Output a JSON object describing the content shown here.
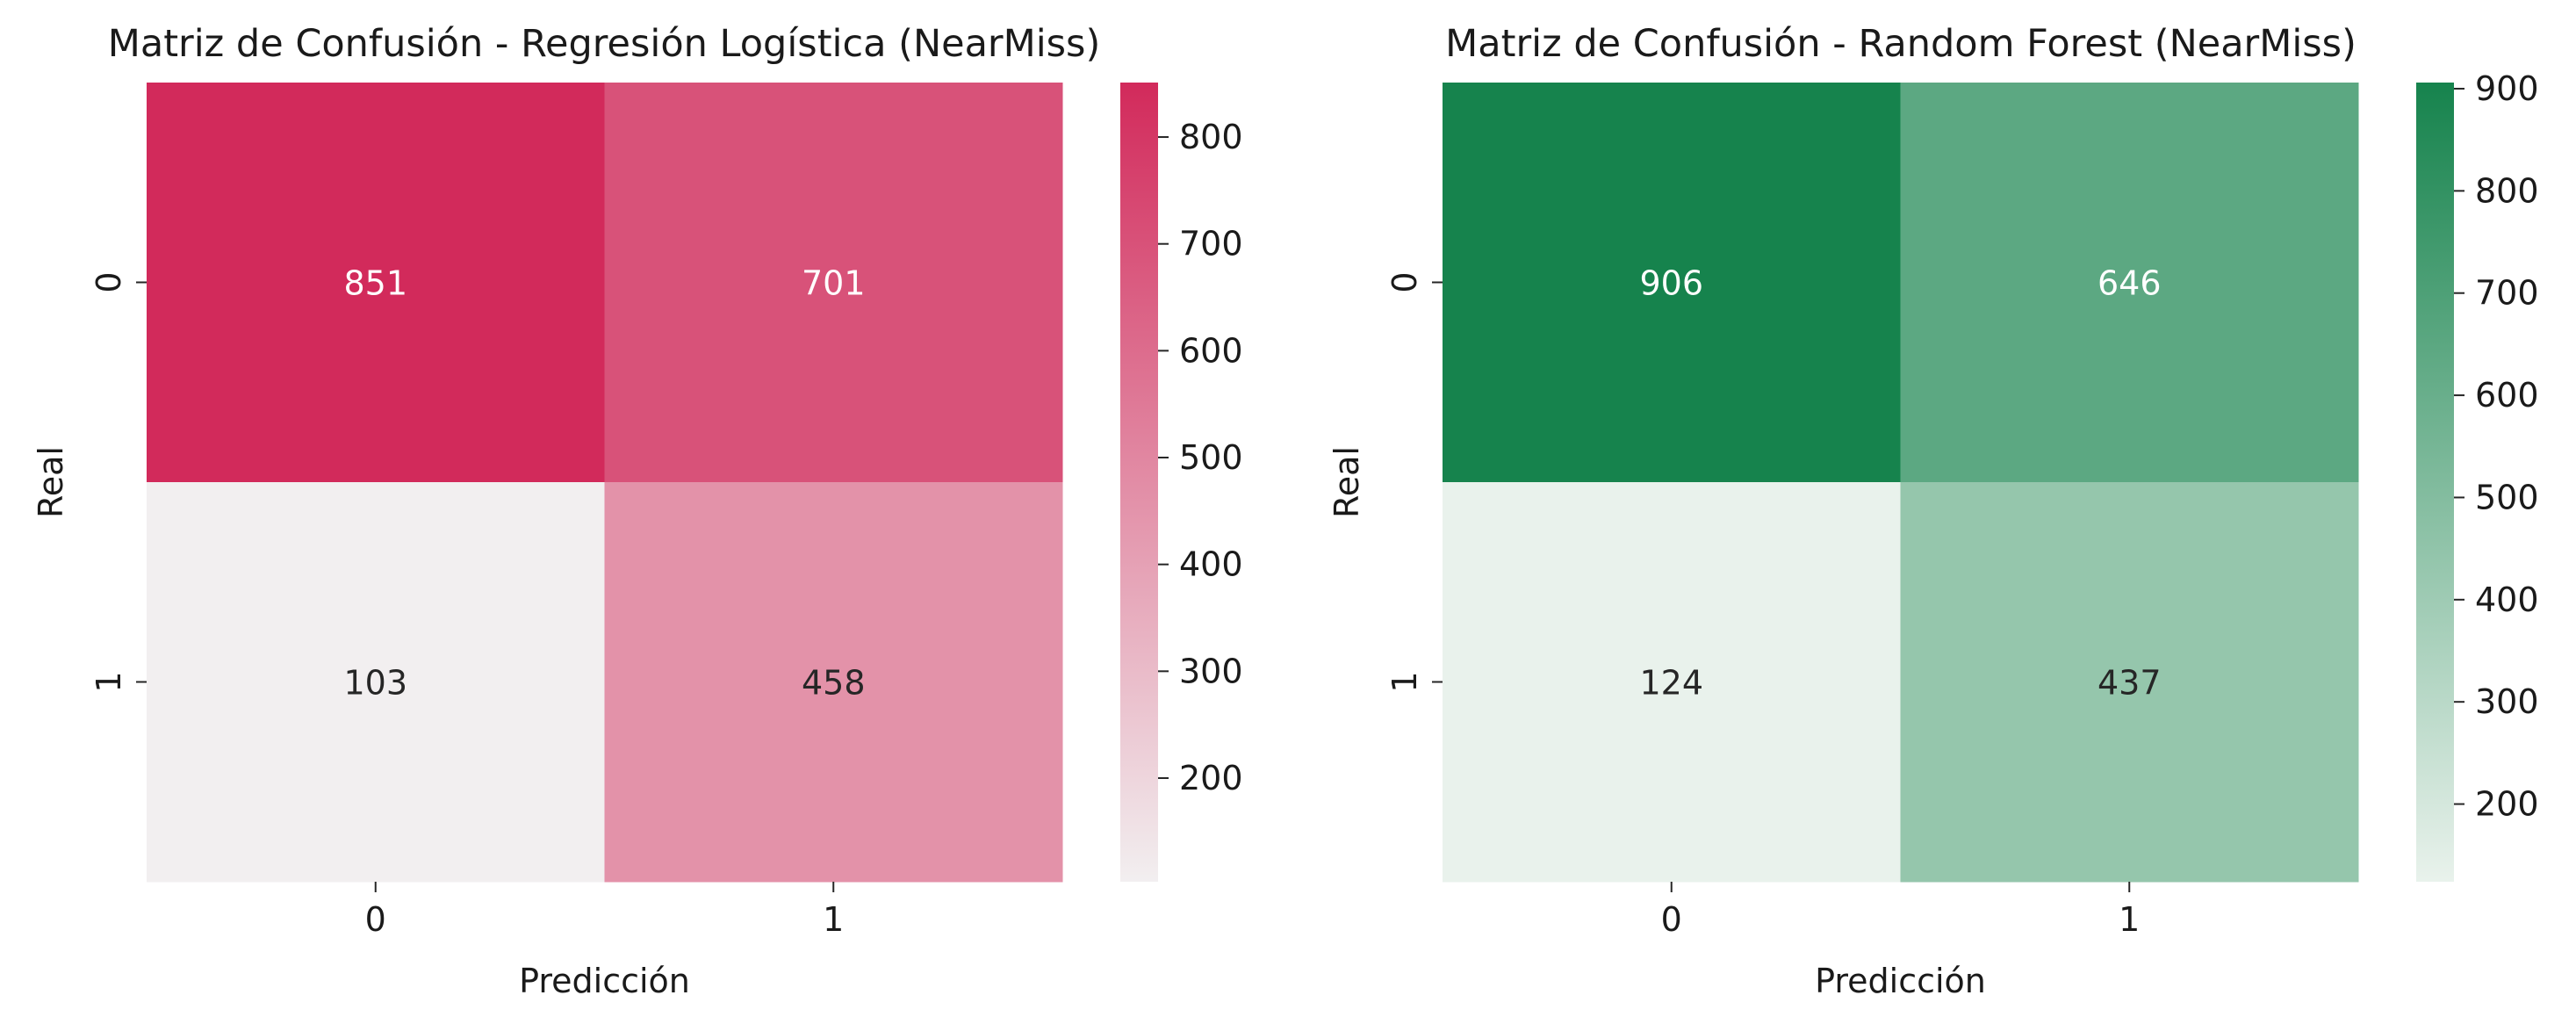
{
  "chart_data": [
    {
      "type": "heatmap",
      "title": "Matriz de Confusión - Regresión Logística (NearMiss)",
      "xlabel": "Predicción",
      "ylabel": "Real",
      "x_categories": [
        "0",
        "1"
      ],
      "y_categories": [
        "0",
        "1"
      ],
      "values": [
        [
          851,
          701
        ],
        [
          103,
          458
        ]
      ],
      "colorbar": {
        "range": [
          103,
          851
        ],
        "ticks": [
          200,
          300,
          400,
          500,
          600,
          700,
          800
        ]
      },
      "colors": {
        "low": "#f2eff0",
        "high": "#d22a5b"
      }
    },
    {
      "type": "heatmap",
      "title": "Matriz de Confusión - Random Forest (NearMiss)",
      "xlabel": "Predicción",
      "ylabel": "Real",
      "x_categories": [
        "0",
        "1"
      ],
      "y_categories": [
        "0",
        "1"
      ],
      "values": [
        [
          906,
          646
        ],
        [
          124,
          437
        ]
      ],
      "colorbar": {
        "range": [
          124,
          906
        ],
        "ticks": [
          200,
          300,
          400,
          500,
          600,
          700,
          800,
          900
        ]
      },
      "colors": {
        "low": "#e9f2ec",
        "high": "#16834d"
      }
    }
  ]
}
